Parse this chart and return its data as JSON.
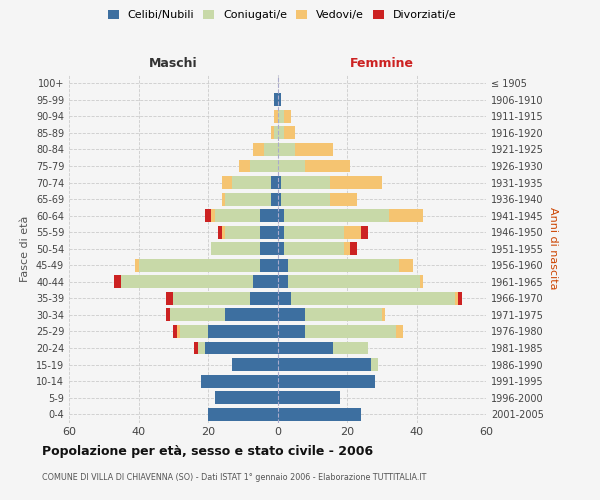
{
  "age_groups": [
    "0-4",
    "5-9",
    "10-14",
    "15-19",
    "20-24",
    "25-29",
    "30-34",
    "35-39",
    "40-44",
    "45-49",
    "50-54",
    "55-59",
    "60-64",
    "65-69",
    "70-74",
    "75-79",
    "80-84",
    "85-89",
    "90-94",
    "95-99",
    "100+"
  ],
  "birth_years": [
    "2001-2005",
    "1996-2000",
    "1991-1995",
    "1986-1990",
    "1981-1985",
    "1976-1980",
    "1971-1975",
    "1966-1970",
    "1961-1965",
    "1956-1960",
    "1951-1955",
    "1946-1950",
    "1941-1945",
    "1936-1940",
    "1931-1935",
    "1926-1930",
    "1921-1925",
    "1916-1920",
    "1911-1915",
    "1906-1910",
    "≤ 1905"
  ],
  "males": {
    "celibe": [
      20,
      18,
      22,
      13,
      21,
      20,
      15,
      8,
      7,
      5,
      5,
      5,
      5,
      2,
      2,
      0,
      0,
      0,
      0,
      1,
      0
    ],
    "coniugato": [
      0,
      0,
      0,
      0,
      2,
      8,
      16,
      22,
      38,
      35,
      14,
      10,
      13,
      13,
      11,
      8,
      4,
      1,
      0,
      0,
      0
    ],
    "vedovo": [
      0,
      0,
      0,
      0,
      0,
      1,
      0,
      0,
      0,
      1,
      0,
      1,
      1,
      1,
      3,
      3,
      3,
      1,
      1,
      0,
      0
    ],
    "divorziato": [
      0,
      0,
      0,
      0,
      1,
      1,
      1,
      2,
      2,
      0,
      0,
      1,
      2,
      0,
      0,
      0,
      0,
      0,
      0,
      0,
      0
    ]
  },
  "females": {
    "nubile": [
      24,
      18,
      28,
      27,
      16,
      8,
      8,
      4,
      3,
      3,
      2,
      2,
      2,
      1,
      1,
      0,
      0,
      0,
      0,
      1,
      0
    ],
    "coniugata": [
      0,
      0,
      0,
      2,
      10,
      26,
      22,
      47,
      38,
      32,
      17,
      17,
      30,
      14,
      14,
      8,
      5,
      2,
      2,
      0,
      0
    ],
    "vedova": [
      0,
      0,
      0,
      0,
      0,
      2,
      1,
      1,
      1,
      4,
      2,
      5,
      10,
      8,
      15,
      13,
      11,
      3,
      2,
      0,
      0
    ],
    "divorziata": [
      0,
      0,
      0,
      0,
      0,
      0,
      0,
      1,
      0,
      0,
      2,
      2,
      0,
      0,
      0,
      0,
      0,
      0,
      0,
      0,
      0
    ]
  },
  "color_celibe": "#3d6fa0",
  "color_coniugato": "#c8d9a8",
  "color_vedovo": "#f5c471",
  "color_divorziato": "#cc2222",
  "xlim": 60,
  "title": "Popolazione per età, sesso e stato civile - 2006",
  "subtitle": "COMUNE DI VILLA DI CHIAVENNA (SO) - Dati ISTAT 1° gennaio 2006 - Elaborazione TUTTITALIA.IT",
  "ylabel_left": "Fasce di età",
  "ylabel_right": "Anni di nascita",
  "xlabel_left": "Maschi",
  "xlabel_right": "Femmine",
  "bg_color": "#f5f5f5",
  "grid_color": "#cccccc"
}
